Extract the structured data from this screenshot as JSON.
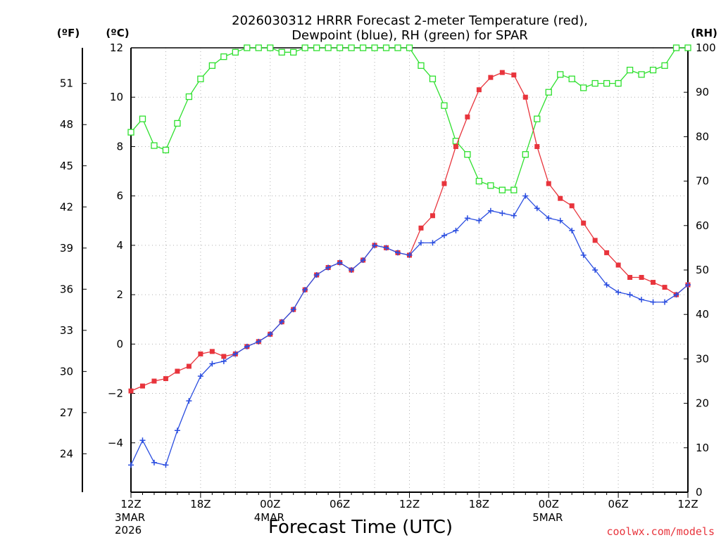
{
  "chart_data": {
    "type": "line",
    "title_line1": "2026030312 HRRR Forecast 2-meter Temperature (red),",
    "title_line2": "Dewpoint (blue), RH (green) for SPAR",
    "xlabel": "Forecast Time (UTC)",
    "credit": "coolwx.com/models",
    "units": {
      "fahrenheit": "(ºF)",
      "celsius": "(ºC)",
      "rh": "(RH)"
    },
    "x_range_hours": [
      0,
      48
    ],
    "y_celsius_range": [
      -6,
      12
    ],
    "y_rh_range": [
      0,
      100
    ],
    "x_ticks": [
      {
        "hour": 0,
        "label": "12Z",
        "date": "3MAR",
        "year": "2026"
      },
      {
        "hour": 6,
        "label": "18Z"
      },
      {
        "hour": 12,
        "label": "00Z",
        "date": "4MAR"
      },
      {
        "hour": 18,
        "label": "06Z"
      },
      {
        "hour": 24,
        "label": "12Z"
      },
      {
        "hour": 30,
        "label": "18Z"
      },
      {
        "hour": 36,
        "label": "00Z",
        "date": "5MAR"
      },
      {
        "hour": 42,
        "label": "06Z"
      },
      {
        "hour": 48,
        "label": "12Z"
      }
    ],
    "celsius_ticks": [
      "-4",
      "-2",
      "0",
      "2",
      "4",
      "6",
      "8",
      "10",
      "12"
    ],
    "fahrenheit_ticks": [
      "24",
      "27",
      "30",
      "33",
      "36",
      "39",
      "42",
      "45",
      "48",
      "51"
    ],
    "rh_ticks": [
      "0",
      "10",
      "20",
      "30",
      "40",
      "50",
      "60",
      "70",
      "80",
      "90",
      "100"
    ],
    "series": [
      {
        "name": "Temperature",
        "color": "#e8343c",
        "marker": "square",
        "values": [
          -1.9,
          -1.7,
          -1.5,
          -1.4,
          -1.1,
          -0.9,
          -0.4,
          -0.3,
          -0.5,
          -0.4,
          -0.1,
          0.1,
          0.4,
          0.9,
          1.4,
          2.2,
          2.8,
          3.1,
          3.3,
          3.0,
          3.4,
          4.0,
          3.9,
          3.7,
          3.6,
          4.7,
          5.2,
          6.5,
          8.0,
          9.2,
          10.3,
          10.8,
          11.0,
          10.9,
          10.0,
          8.0,
          6.5,
          5.9,
          5.6,
          4.9,
          4.2,
          3.7,
          3.2,
          2.7,
          2.7,
          2.5,
          2.3,
          2.0,
          2.4
        ]
      },
      {
        "name": "Dewpoint",
        "color": "#2a4de0",
        "marker": "plus",
        "values": [
          -4.9,
          -3.9,
          -4.8,
          -4.9,
          -3.5,
          -2.3,
          -1.3,
          -0.8,
          -0.7,
          -0.4,
          -0.1,
          0.1,
          0.4,
          0.9,
          1.4,
          2.2,
          2.8,
          3.1,
          3.3,
          3.0,
          3.4,
          4.0,
          3.9,
          3.7,
          3.6,
          4.1,
          4.1,
          4.4,
          4.6,
          5.1,
          5.0,
          5.4,
          5.3,
          5.2,
          6.0,
          5.5,
          5.1,
          5.0,
          4.6,
          3.6,
          3.0,
          2.4,
          2.1,
          2.0,
          1.8,
          1.7,
          1.7,
          2.0,
          2.4
        ]
      },
      {
        "name": "RH",
        "color": "#2ee02e",
        "marker": "open-square",
        "values": [
          81,
          84,
          78,
          77,
          83,
          89,
          93,
          96,
          98,
          99,
          100,
          100,
          100,
          99,
          99,
          100,
          100,
          100,
          100,
          100,
          100,
          100,
          100,
          100,
          100,
          96,
          93,
          87,
          79,
          76,
          70,
          69,
          68,
          68,
          76,
          84,
          90,
          94,
          93,
          91,
          92,
          92,
          92,
          95,
          94,
          95,
          96,
          100,
          100
        ]
      }
    ]
  }
}
